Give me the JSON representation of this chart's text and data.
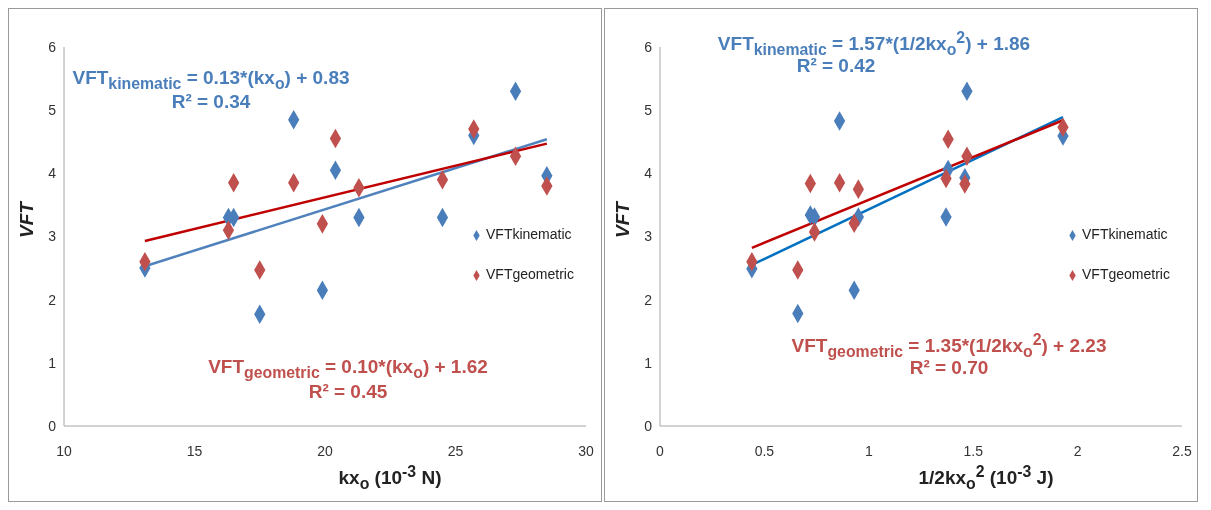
{
  "chart_data": [
    {
      "type": "scatter",
      "xlabel": "kx$_{o}$ (10$^{-3}$ N)",
      "ylabel": "VFT",
      "xlim": [
        10,
        30
      ],
      "xticks": [
        10,
        15,
        20,
        25,
        30
      ],
      "ylim": [
        0,
        6
      ],
      "yticks": [
        0,
        1,
        2,
        3,
        4,
        5,
        6
      ],
      "grid": false,
      "legend": "right",
      "marker": "diamond",
      "annotations": [
        "VFT$_{kinematic}$ = 0.13*(kx$_{o}$) + 0.83",
        "R² = 0.34",
        "VFT$_{geometric}$ = 0.10*(kx$_{o}$) + 1.62",
        "R² = 0.45"
      ],
      "series": [
        {
          "name": "VFTkinematic",
          "color": "#4a7ebb",
          "x": [
            13.1,
            16.3,
            16.5,
            17.5,
            18.8,
            19.9,
            20.4,
            21.3,
            24.5,
            25.7,
            27.3,
            28.5
          ],
          "values": [
            2.5,
            3.3,
            3.3,
            1.77,
            4.85,
            2.15,
            4.05,
            3.3,
            3.3,
            4.6,
            5.3,
            3.96
          ]
        },
        {
          "name": "VFTgeometric",
          "color": "#c0504d",
          "x": [
            13.1,
            16.3,
            16.5,
            17.5,
            18.8,
            19.9,
            20.4,
            21.3,
            24.5,
            25.7,
            27.3,
            28.5
          ],
          "values": [
            2.6,
            3.1,
            3.85,
            2.47,
            3.85,
            3.2,
            4.55,
            3.77,
            3.9,
            4.7,
            4.27,
            3.8
          ]
        },
        {
          "type": "line",
          "marker": "none",
          "color": "#4f81bd",
          "x": [
            13.1,
            28.5
          ],
          "values": [
            2.53,
            4.54
          ]
        },
        {
          "type": "line",
          "marker": "none",
          "color": "#c00000",
          "x": [
            13.1,
            28.5
          ],
          "values": [
            2.93,
            4.47
          ]
        }
      ]
    },
    {
      "type": "scatter",
      "xlabel": "1/2kx$_{o}$$^{2}$ (10$^{-3}$ J)",
      "ylabel": "VFT",
      "xlim": [
        0,
        2.5
      ],
      "xticks": [
        0,
        0.5,
        1,
        1.5,
        2,
        2.5
      ],
      "ylim": [
        0,
        6
      ],
      "yticks": [
        0,
        1,
        2,
        3,
        4,
        5,
        6
      ],
      "grid": false,
      "legend": "right",
      "marker": "diamond",
      "annotations": [
        "VFT$_{kinematic}$ = 1.57*(1/2kx$_{o}$$^{2}$) + 1.86",
        "R² = 0.42",
        "VFT$_{geometric}$ = 1.35*(1/2kx$_{o}$$^{2}$) + 2.23",
        "R² = 0.70"
      ],
      "series": [
        {
          "name": "VFTkinematic",
          "color": "#4a7ebb",
          "x": [
            0.44,
            0.66,
            0.72,
            0.74,
            0.86,
            0.93,
            0.95,
            1.37,
            1.38,
            1.46,
            1.47,
            1.93
          ],
          "values": [
            2.49,
            1.78,
            3.34,
            3.31,
            4.83,
            2.15,
            3.31,
            3.31,
            4.06,
            3.93,
            5.3,
            4.59
          ]
        },
        {
          "name": "VFTgeometric",
          "color": "#c0504d",
          "x": [
            0.44,
            0.66,
            0.72,
            0.74,
            0.86,
            0.93,
            0.95,
            1.37,
            1.38,
            1.46,
            1.47,
            1.93
          ],
          "values": [
            2.6,
            2.47,
            3.84,
            3.07,
            3.85,
            3.21,
            3.75,
            3.92,
            4.54,
            3.83,
            4.27,
            4.73
          ]
        },
        {
          "type": "line",
          "marker": "none",
          "color": "#0070c0",
          "x": [
            0.44,
            1.93
          ],
          "values": [
            2.55,
            4.89
          ]
        },
        {
          "type": "line",
          "marker": "none",
          "color": "#c00000",
          "x": [
            0.44,
            1.93
          ],
          "values": [
            2.82,
            4.84
          ]
        }
      ]
    }
  ]
}
